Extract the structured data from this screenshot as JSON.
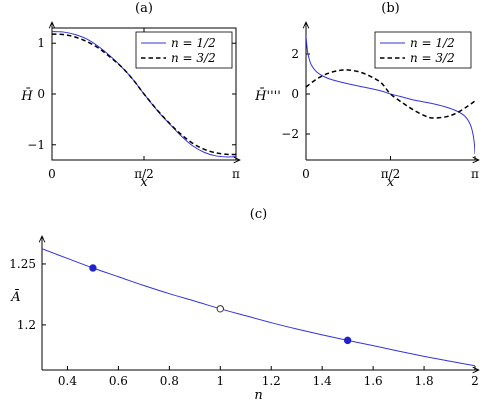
{
  "chart_data": [
    {
      "type": "line",
      "panel_label": "(a)",
      "xlabel": "x",
      "ylabel": "H̄",
      "xlim": [
        0,
        3.14159
      ],
      "ylim": [
        -1.3,
        1.3
      ],
      "xticks": [
        {
          "v": 0,
          "label": "0"
        },
        {
          "v": 1.5708,
          "label": "π/2"
        },
        {
          "v": 3.14159,
          "label": "π"
        }
      ],
      "yticks": [
        {
          "v": -1,
          "label": "−1"
        },
        {
          "v": 0,
          "label": "0"
        },
        {
          "v": 1,
          "label": "1"
        }
      ],
      "legend_position": "top-right",
      "series": [
        {
          "name": "n = 1/2",
          "style": "solid",
          "color": "#3333dd",
          "x": [
            0,
            0.2,
            0.4,
            0.6,
            0.8,
            1.0,
            1.2,
            1.4,
            1.5708,
            1.8,
            2.0,
            2.2,
            2.4,
            2.6,
            2.8,
            3.0,
            3.14159
          ],
          "y": [
            1.23,
            1.22,
            1.17,
            1.08,
            0.93,
            0.74,
            0.52,
            0.26,
            0.0,
            -0.33,
            -0.58,
            -0.82,
            -1.02,
            -1.15,
            -1.22,
            -1.24,
            -1.23
          ]
        },
        {
          "name": "n = 3/2",
          "style": "dashed",
          "color": "#000000",
          "x": [
            0,
            0.2,
            0.4,
            0.6,
            0.8,
            1.0,
            1.2,
            1.4,
            1.5708,
            1.8,
            2.0,
            2.2,
            2.4,
            2.6,
            2.8,
            3.0,
            3.14159
          ],
          "y": [
            1.18,
            1.17,
            1.12,
            1.03,
            0.9,
            0.72,
            0.52,
            0.26,
            0.0,
            -0.32,
            -0.57,
            -0.79,
            -0.97,
            -1.09,
            -1.16,
            -1.19,
            -1.19
          ]
        }
      ]
    },
    {
      "type": "line",
      "panel_label": "(b)",
      "xlabel": "x",
      "ylabel": "H̄''''",
      "xlim": [
        0,
        3.14159
      ],
      "ylim": [
        -3.3,
        3.3
      ],
      "xticks": [
        {
          "v": 0,
          "label": "0"
        },
        {
          "v": 1.5708,
          "label": "π/2"
        },
        {
          "v": 3.14159,
          "label": "π"
        }
      ],
      "yticks": [
        {
          "v": -2,
          "label": "−2"
        },
        {
          "v": 0,
          "label": "0"
        },
        {
          "v": 2,
          "label": "2"
        }
      ],
      "legend_position": "top-right",
      "series": [
        {
          "name": "n = 1/2",
          "style": "solid",
          "color": "#3333dd",
          "x": [
            0.0,
            0.01,
            0.03,
            0.06,
            0.1,
            0.2,
            0.35,
            0.5,
            0.8,
            1.1,
            1.4,
            1.5708,
            1.75,
            2.0,
            2.3,
            2.6,
            2.8,
            2.95,
            3.05,
            3.1,
            3.13,
            3.14159
          ],
          "y": [
            2.9,
            2.6,
            2.1,
            1.75,
            1.45,
            1.1,
            0.85,
            0.7,
            0.5,
            0.33,
            0.15,
            0.0,
            -0.12,
            -0.3,
            -0.45,
            -0.65,
            -0.85,
            -1.1,
            -1.5,
            -1.95,
            -2.5,
            -3.0
          ]
        },
        {
          "name": "n = 3/2",
          "style": "dashed",
          "color": "#000000",
          "x": [
            0,
            0.2,
            0.4,
            0.6,
            0.785,
            1.0,
            1.2,
            1.4,
            1.5708,
            1.8,
            2.0,
            2.2,
            2.356,
            2.6,
            2.8,
            3.0,
            3.14159
          ],
          "y": [
            0.35,
            0.75,
            1.02,
            1.17,
            1.2,
            1.1,
            0.88,
            0.55,
            0.0,
            -0.45,
            -0.8,
            -1.08,
            -1.2,
            -1.14,
            -0.95,
            -0.62,
            -0.35
          ]
        }
      ]
    },
    {
      "type": "line",
      "panel_label": "(c)",
      "xlabel": "n",
      "ylabel": "Ā",
      "xlim": [
        0.3,
        2.0
      ],
      "ylim": [
        1.163,
        1.268
      ],
      "xticks": [
        0.4,
        0.6,
        0.8,
        1.0,
        1.2,
        1.4,
        1.6,
        1.8,
        2.0
      ],
      "xtick_labels": [
        "0.4",
        "0.6",
        "0.8",
        "1",
        "1.2",
        "1.4",
        "1.6",
        "1.8",
        "2"
      ],
      "yticks": [
        1.2,
        1.25
      ],
      "ytick_labels": [
        "1.2",
        "1.25"
      ],
      "series": [
        {
          "style": "solid",
          "color": "#3333dd",
          "x": [
            0.3,
            0.4,
            0.5,
            0.6,
            0.7,
            0.8,
            0.9,
            1.0,
            1.1,
            1.2,
            1.3,
            1.4,
            1.5,
            1.6,
            1.7,
            1.8,
            1.9,
            2.0
          ],
          "y": [
            1.2625,
            1.2545,
            1.2467,
            1.2395,
            1.2323,
            1.2256,
            1.2195,
            1.2132,
            1.2075,
            1.2018,
            1.1966,
            1.1918,
            1.1873,
            1.183,
            1.1785,
            1.1742,
            1.1703,
            1.1665
          ]
        }
      ],
      "markers": [
        {
          "x": 0.5,
          "y": 1.2467,
          "filled": true
        },
        {
          "x": 1.0,
          "y": 1.2132,
          "filled": false
        },
        {
          "x": 1.5,
          "y": 1.1873,
          "filled": true
        }
      ]
    }
  ]
}
